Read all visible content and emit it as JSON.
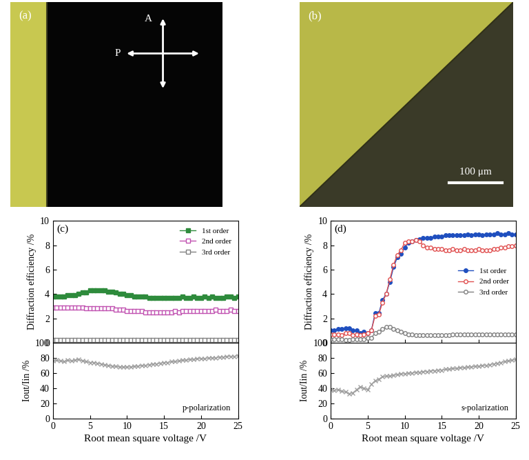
{
  "images": [
    {
      "label": "(a)",
      "axis_arrows": [
        "A",
        "P"
      ]
    },
    {
      "label": "(b)",
      "scale_bar": "100 μm"
    }
  ],
  "chart_data": [
    {
      "type": "line",
      "panel": "(c)",
      "ylabel": "Diffraction efficiency /%",
      "xlim": [
        0,
        25
      ],
      "xticks": [
        0,
        5,
        10,
        15,
        20,
        25
      ],
      "ylim": [
        0,
        10
      ],
      "yticks": [
        0,
        2,
        4,
        6,
        8,
        10
      ],
      "tick_labels": "y",
      "legend": "upper right",
      "x": [
        0,
        0.5,
        1,
        1.5,
        2,
        2.5,
        3,
        3.5,
        4,
        4.5,
        5,
        5.5,
        6,
        6.5,
        7,
        7.5,
        8,
        8.5,
        9,
        9.5,
        10,
        10.5,
        11,
        11.5,
        12,
        12.5,
        13,
        13.5,
        14,
        14.5,
        15,
        15.5,
        16,
        16.5,
        17,
        17.5,
        18,
        18.5,
        19,
        19.5,
        20,
        20.5,
        21,
        21.5,
        22,
        22.5,
        23,
        23.5,
        24,
        24.5,
        25
      ],
      "series": [
        {
          "name": "1st order",
          "color": "#2e8b3c",
          "marker": "square",
          "values": [
            3.8,
            3.8,
            3.8,
            3.8,
            3.9,
            3.9,
            3.9,
            4.0,
            4.1,
            4.1,
            4.3,
            4.3,
            4.3,
            4.3,
            4.3,
            4.2,
            4.2,
            4.1,
            4.0,
            4.0,
            3.9,
            3.9,
            3.8,
            3.8,
            3.8,
            3.8,
            3.7,
            3.7,
            3.7,
            3.7,
            3.7,
            3.7,
            3.7,
            3.7,
            3.7,
            3.8,
            3.7,
            3.7,
            3.8,
            3.7,
            3.7,
            3.8,
            3.7,
            3.8,
            3.7,
            3.7,
            3.7,
            3.8,
            3.8,
            3.7,
            3.8
          ]
        },
        {
          "name": "2nd order",
          "color": "#c050b0",
          "marker": "open_square",
          "values": [
            2.9,
            2.9,
            2.9,
            2.9,
            2.9,
            2.9,
            2.9,
            2.9,
            2.9,
            2.8,
            2.8,
            2.8,
            2.8,
            2.8,
            2.8,
            2.8,
            2.8,
            2.7,
            2.7,
            2.7,
            2.6,
            2.6,
            2.6,
            2.6,
            2.6,
            2.5,
            2.5,
            2.5,
            2.5,
            2.5,
            2.5,
            2.5,
            2.5,
            2.6,
            2.5,
            2.6,
            2.6,
            2.6,
            2.6,
            2.6,
            2.6,
            2.6,
            2.6,
            2.6,
            2.7,
            2.6,
            2.6,
            2.6,
            2.7,
            2.6,
            2.6
          ]
        },
        {
          "name": "3rd order",
          "color": "#808080",
          "marker": "open_square",
          "values": [
            0.2,
            0.2,
            0.2,
            0.2,
            0.2,
            0.2,
            0.2,
            0.2,
            0.2,
            0.2,
            0.2,
            0.2,
            0.2,
            0.2,
            0.2,
            0.2,
            0.2,
            0.2,
            0.2,
            0.2,
            0.2,
            0.2,
            0.2,
            0.2,
            0.2,
            0.2,
            0.2,
            0.2,
            0.2,
            0.2,
            0.2,
            0.2,
            0.2,
            0.2,
            0.2,
            0.2,
            0.2,
            0.2,
            0.2,
            0.2,
            0.2,
            0.2,
            0.2,
            0.2,
            0.2,
            0.2,
            0.2,
            0.2,
            0.2,
            0.2,
            0.2
          ]
        }
      ]
    },
    {
      "type": "line",
      "xlabel": "Root mean square voltage /V",
      "ylabel": "Iout/Iin /%",
      "annotation": "p-polarization",
      "xlim": [
        0,
        25
      ],
      "xticks": [
        0,
        5,
        10,
        15,
        20,
        25
      ],
      "ylim": [
        0,
        100
      ],
      "yticks": [
        0,
        20,
        40,
        60,
        80,
        100
      ],
      "x": [
        0,
        0.5,
        1,
        1.5,
        2,
        2.5,
        3,
        3.5,
        4,
        4.5,
        5,
        5.5,
        6,
        6.5,
        7,
        7.5,
        8,
        8.5,
        9,
        9.5,
        10,
        10.5,
        11,
        11.5,
        12,
        12.5,
        13,
        13.5,
        14,
        14.5,
        15,
        15.5,
        16,
        16.5,
        17,
        17.5,
        18,
        18.5,
        19,
        19.5,
        20,
        20.5,
        21,
        21.5,
        22,
        22.5,
        23,
        23.5,
        24,
        24.5,
        25
      ],
      "series": [
        {
          "color": "#a0a0a0",
          "marker": "x",
          "values": [
            76,
            77,
            76,
            75,
            77,
            76,
            77,
            78,
            76,
            75,
            74,
            74,
            73,
            72,
            71,
            70,
            69,
            69,
            68,
            68,
            68,
            68,
            69,
            69,
            70,
            70,
            71,
            72,
            72,
            73,
            74,
            74,
            75,
            75,
            76,
            77,
            77,
            78,
            78,
            79,
            79,
            79,
            80,
            80,
            80,
            81,
            81,
            82,
            82,
            82,
            83
          ]
        }
      ]
    },
    {
      "type": "line",
      "panel": "(d)",
      "ylabel": "Diffraction efficiency /%",
      "xlim": [
        0,
        25
      ],
      "xticks": [
        0,
        5,
        10,
        15,
        20,
        25
      ],
      "ylim": [
        0,
        10
      ],
      "yticks": [
        0,
        2,
        4,
        6,
        8,
        10
      ],
      "tick_labels": "y",
      "legend": "center right",
      "x": [
        0,
        0.5,
        1,
        1.5,
        2,
        2.5,
        3,
        3.5,
        4,
        4.5,
        5,
        5.5,
        6,
        6.5,
        7,
        7.5,
        8,
        8.5,
        9,
        9.5,
        10,
        10.5,
        11,
        11.5,
        12,
        12.5,
        13,
        13.5,
        14,
        14.5,
        15,
        15.5,
        16,
        16.5,
        17,
        17.5,
        18,
        18.5,
        19,
        19.5,
        20,
        20.5,
        21,
        21.5,
        22,
        22.5,
        23,
        23.5,
        24,
        24.5,
        25
      ],
      "series": [
        {
          "name": "1st order",
          "color": "#1f4fbf",
          "marker": "circle",
          "values": [
            1.0,
            1.0,
            1.1,
            1.1,
            1.2,
            1.2,
            1.0,
            1.0,
            0.8,
            0.9,
            0.8,
            1.0,
            2.4,
            2.4,
            3.5,
            4.0,
            5.0,
            6.2,
            7.0,
            7.3,
            7.8,
            8.2,
            8.3,
            8.4,
            8.5,
            8.6,
            8.6,
            8.6,
            8.7,
            8.7,
            8.7,
            8.8,
            8.8,
            8.8,
            8.8,
            8.8,
            8.8,
            8.9,
            8.8,
            8.9,
            8.9,
            8.8,
            8.9,
            8.9,
            8.9,
            9.0,
            8.9,
            8.9,
            9.0,
            8.9,
            8.9
          ]
        },
        {
          "name": "2nd order",
          "color": "#e05050",
          "marker": "open_circle",
          "values": [
            0.7,
            0.7,
            0.7,
            0.6,
            0.8,
            0.8,
            0.6,
            0.7,
            0.6,
            0.7,
            0.8,
            1.0,
            2.2,
            2.3,
            3.3,
            4.0,
            5.2,
            6.4,
            7.2,
            7.6,
            8.2,
            8.3,
            8.3,
            8.4,
            8.3,
            8.0,
            7.8,
            7.8,
            7.7,
            7.7,
            7.7,
            7.6,
            7.6,
            7.7,
            7.6,
            7.6,
            7.7,
            7.6,
            7.6,
            7.6,
            7.7,
            7.6,
            7.6,
            7.6,
            7.7,
            7.7,
            7.8,
            7.8,
            7.9,
            7.9,
            8.0
          ]
        },
        {
          "name": "3rd order",
          "color": "#808080",
          "marker": "open_circle",
          "values": [
            0.3,
            0.3,
            0.3,
            0.3,
            0.2,
            0.2,
            0.3,
            0.3,
            0.3,
            0.3,
            0.4,
            0.4,
            0.8,
            0.9,
            1.1,
            1.3,
            1.3,
            1.1,
            1.0,
            0.9,
            0.8,
            0.7,
            0.7,
            0.6,
            0.6,
            0.6,
            0.6,
            0.6,
            0.6,
            0.6,
            0.6,
            0.6,
            0.6,
            0.7,
            0.7,
            0.7,
            0.7,
            0.7,
            0.7,
            0.7,
            0.7,
            0.7,
            0.7,
            0.7,
            0.7,
            0.7,
            0.7,
            0.7,
            0.7,
            0.7,
            0.7
          ]
        }
      ]
    },
    {
      "type": "line",
      "xlabel": "Root mean square voltage /V",
      "ylabel": "Iout/Iin /%",
      "annotation": "s-polarization",
      "xlim": [
        0,
        25
      ],
      "xticks": [
        0,
        5,
        10,
        15,
        20,
        25
      ],
      "ylim": [
        0,
        100
      ],
      "yticks": [
        0,
        20,
        40,
        60,
        80,
        100
      ],
      "x": [
        0,
        0.5,
        1,
        1.5,
        2,
        2.5,
        3,
        3.5,
        4,
        4.5,
        5,
        5.5,
        6,
        6.5,
        7,
        7.5,
        8,
        8.5,
        9,
        9.5,
        10,
        10.5,
        11,
        11.5,
        12,
        12.5,
        13,
        13.5,
        14,
        14.5,
        15,
        15.5,
        16,
        16.5,
        17,
        17.5,
        18,
        18.5,
        19,
        19.5,
        20,
        20.5,
        21,
        21.5,
        22,
        22.5,
        23,
        23.5,
        24,
        24.5,
        25
      ],
      "series": [
        {
          "color": "#a0a0a0",
          "marker": "x",
          "values": [
            38,
            37,
            38,
            36,
            35,
            33,
            34,
            38,
            42,
            40,
            38,
            45,
            50,
            52,
            55,
            56,
            56,
            57,
            58,
            59,
            59,
            60,
            60,
            61,
            61,
            62,
            62,
            63,
            63,
            64,
            64,
            65,
            65,
            66,
            66,
            67,
            67,
            68,
            68,
            69,
            69,
            70,
            70,
            71,
            72,
            73,
            74,
            75,
            76,
            77,
            78
          ]
        }
      ]
    }
  ]
}
